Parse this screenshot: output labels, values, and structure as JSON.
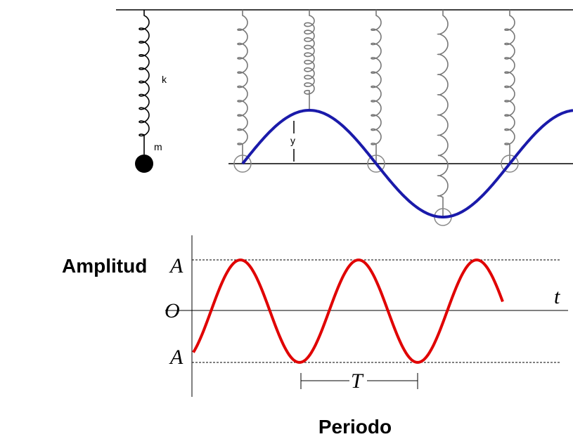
{
  "spring": {
    "k_label": "k",
    "m_label": "m",
    "y_label": "y"
  },
  "graph": {
    "amplitude_title": "Amplitud",
    "top_label": "A",
    "origin_label": "O",
    "time_label": "t",
    "bottom_label": "A",
    "period_label": "T",
    "period_title": "Periodo"
  }
}
